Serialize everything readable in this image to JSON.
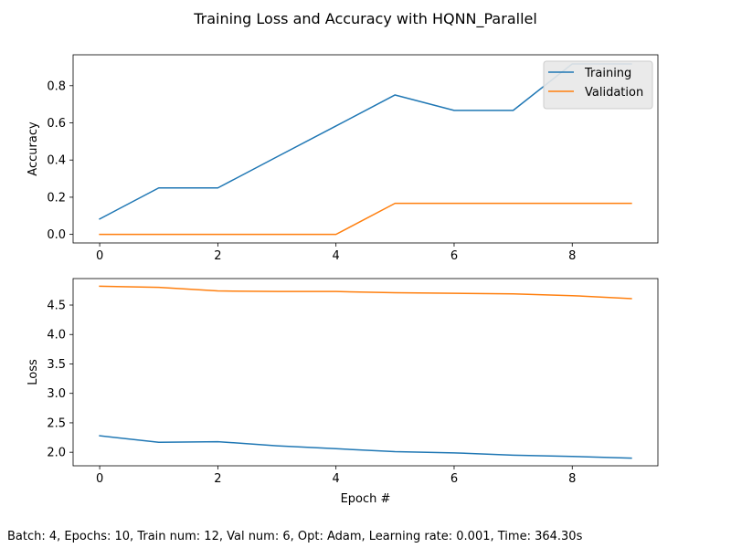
{
  "figure": {
    "title": "Training Loss and Accuracy with HQNN_Parallel",
    "footer": "Batch: 4, Epochs: 10, Train num: 12, Val num: 6, Opt: Adam, Learning rate: 0.001, Time: 364.30s"
  },
  "colors": {
    "training": "#1f77b4",
    "validation": "#ff7f0e",
    "axis": "#000000",
    "legend_face": "#e8e8e8",
    "legend_edge": "#cccccc"
  },
  "chart_data": [
    {
      "type": "line",
      "title": "",
      "xlabel": "",
      "ylabel": "Accuracy",
      "x": [
        0,
        1,
        2,
        3,
        4,
        5,
        6,
        7,
        8,
        9
      ],
      "xlim": [
        -0.45,
        9.45
      ],
      "ylim": [
        -0.046,
        0.966
      ],
      "xticks": [
        0,
        2,
        4,
        6,
        8
      ],
      "xtick_labels": [
        "0",
        "2",
        "4",
        "6",
        "8"
      ],
      "yticks": [
        0.0,
        0.2,
        0.4,
        0.6,
        0.8
      ],
      "ytick_labels": [
        "0.0",
        "0.2",
        "0.4",
        "0.6",
        "0.8"
      ],
      "grid": false,
      "legend_position": "upper right",
      "series": [
        {
          "name": "Training",
          "color": "#1f77b4",
          "values": [
            0.083,
            0.25,
            0.25,
            0.417,
            0.583,
            0.75,
            0.667,
            0.667,
            0.917,
            0.917
          ]
        },
        {
          "name": "Validation",
          "color": "#ff7f0e",
          "values": [
            0.0,
            0.0,
            0.0,
            0.0,
            0.0,
            0.167,
            0.167,
            0.167,
            0.167,
            0.167
          ]
        }
      ]
    },
    {
      "type": "line",
      "title": "",
      "xlabel": "Epoch #",
      "ylabel": "Loss",
      "x": [
        0,
        1,
        2,
        3,
        4,
        5,
        6,
        7,
        8,
        9
      ],
      "xlim": [
        -0.45,
        9.45
      ],
      "ylim": [
        1.77,
        4.95
      ],
      "xticks": [
        0,
        2,
        4,
        6,
        8
      ],
      "xtick_labels": [
        "0",
        "2",
        "4",
        "6",
        "8"
      ],
      "yticks": [
        2.0,
        2.5,
        3.0,
        3.5,
        4.0,
        4.5
      ],
      "ytick_labels": [
        "2.0",
        "2.5",
        "3.0",
        "3.5",
        "4.0",
        "4.5"
      ],
      "grid": false,
      "legend_position": "none",
      "series": [
        {
          "name": "",
          "color": "#1f77b4",
          "values": [
            2.28,
            2.17,
            2.18,
            2.11,
            2.06,
            2.01,
            1.99,
            1.95,
            1.93,
            1.9
          ]
        },
        {
          "name": "",
          "color": "#ff7f0e",
          "values": [
            4.82,
            4.8,
            4.74,
            4.73,
            4.73,
            4.71,
            4.7,
            4.69,
            4.66,
            4.61
          ]
        }
      ]
    }
  ]
}
